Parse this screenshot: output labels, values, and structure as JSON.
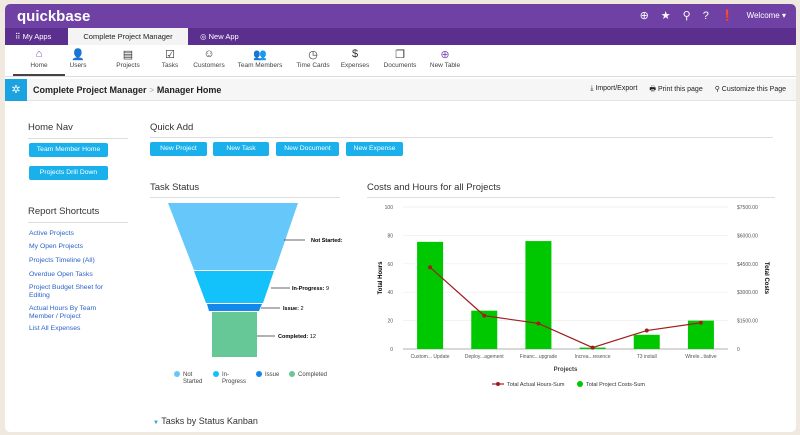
{
  "header": {
    "logo": "quickbase",
    "welcome": "Welcome ▾",
    "icons": [
      "plus-circle-icon",
      "star-icon",
      "search-icon",
      "help-icon",
      "alert-icon"
    ]
  },
  "tabs": {
    "my_apps": "My Apps",
    "active": "Complete Project Manager",
    "new_app": "New App"
  },
  "toolbar": [
    {
      "label": "Home",
      "icon": "⌂"
    },
    {
      "label": "Users",
      "icon": "👤"
    },
    {
      "label": "Projects",
      "icon": "▤"
    },
    {
      "label": "Tasks",
      "icon": "☑"
    },
    {
      "label": "Customers",
      "icon": "☺"
    },
    {
      "label": "Team Members",
      "icon": "👥"
    },
    {
      "label": "Time Cards",
      "icon": "◷"
    },
    {
      "label": "Expenses",
      "icon": "$"
    },
    {
      "label": "Documents",
      "icon": "❐"
    },
    {
      "label": "New Table",
      "icon": "⊕"
    }
  ],
  "breadcrumb": {
    "app": "Complete Project Manager",
    "sep": ">",
    "page": "Manager Home"
  },
  "actions": {
    "import": "Import/Export",
    "print": "Print this page",
    "customize": "Customize this Page"
  },
  "home_nav": {
    "title": "Home Nav",
    "buttons": [
      "Team Member Home",
      "Projects Drill Down"
    ]
  },
  "report_shortcuts": {
    "title": "Report Shortcuts",
    "links": [
      "Active Projects",
      "My Open Projects",
      "Projects Timeline (All)",
      "Overdue Open Tasks",
      "Project Budget Sheet for Editing",
      "Actual Hours By Team Member / Project",
      "List All Expenses"
    ]
  },
  "quick_add": {
    "title": "Quick Add",
    "buttons": [
      "New Project",
      "New Task",
      "New Document",
      "New Expense"
    ]
  },
  "task_status": {
    "title": "Task Status",
    "stages": [
      {
        "label": "Not Started",
        "value": "",
        "color": "#66c7fb"
      },
      {
        "label": "In-Progress",
        "value": "9",
        "color": "#13c2fb"
      },
      {
        "label": "Issue",
        "value": "2",
        "color": "#1487ea"
      },
      {
        "label": "Completed",
        "value": "12",
        "color": "#67c897"
      }
    ],
    "legend": [
      "Not Started",
      "In-Progress",
      "Issue",
      "Completed"
    ]
  },
  "chart_data": {
    "type": "bar",
    "title": "Costs and Hours for all Projects",
    "xlabel": "Projects",
    "ylabel": "Total Hours",
    "y2label": "Total Costs",
    "ylim": [
      0,
      100
    ],
    "y2lim": [
      0,
      7500
    ],
    "yticks": [
      "0",
      "20",
      "40",
      "60",
      "80",
      "100"
    ],
    "y2ticks": [
      "0",
      "$1500.00",
      "$3000.00",
      "$4500.00",
      "$6000.00",
      "$7500.00"
    ],
    "categories": [
      "Custom... Update",
      "Deploy...agement",
      "Financ...upgrade",
      "Increa...resence",
      "T3 install",
      "Wirele...tiative"
    ],
    "series": [
      {
        "name": "Total Actual Hours-Sum",
        "type": "line",
        "axis": "left",
        "color": "#a11d1d",
        "values": [
          57.5,
          23.5,
          18,
          1,
          13,
          18.5
        ]
      },
      {
        "name": "Total Project Costs-Sum",
        "type": "bar",
        "axis": "right",
        "color": "#00c800",
        "values": [
          5660,
          2025,
          5700,
          75,
          750,
          1500
        ]
      }
    ],
    "legend": "bottom",
    "grid": true
  },
  "kanban": {
    "title": "Tasks by Status Kanban"
  }
}
